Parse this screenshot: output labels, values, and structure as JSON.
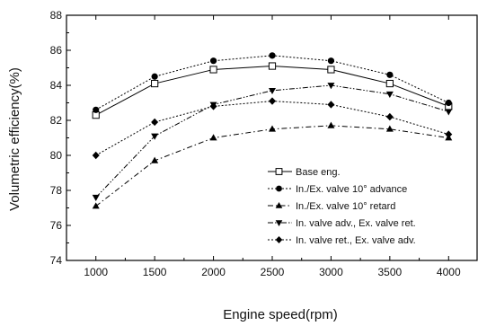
{
  "chart_data": {
    "type": "line",
    "title": "",
    "xlabel": "Engine speed(rpm)",
    "ylabel": "Volumetric efficiency(%)",
    "x": [
      1000,
      1500,
      2000,
      2500,
      3000,
      3500,
      4000
    ],
    "xlim": [
      750,
      4250
    ],
    "ylim": [
      74,
      88
    ],
    "xticks": [
      "1000",
      "1500",
      "2000",
      "2500",
      "3000",
      "3500",
      "4000"
    ],
    "yticks": [
      "74",
      "76",
      "78",
      "80",
      "82",
      "84",
      "86",
      "88"
    ],
    "grid": false,
    "legend_position": "lower-right",
    "series": [
      {
        "name": "Base eng.",
        "marker": "square-open",
        "dash": "solid",
        "values": [
          82.3,
          84.1,
          84.9,
          85.1,
          84.9,
          84.1,
          82.8
        ]
      },
      {
        "name": "In./Ex. valve 10° advance",
        "marker": "circle",
        "dash": "dotted",
        "values": [
          82.6,
          84.5,
          85.4,
          85.7,
          85.4,
          84.6,
          83.0
        ]
      },
      {
        "name": "In./Ex. valve 10° retard",
        "marker": "triangle-up",
        "dash": "dashdot",
        "values": [
          77.1,
          79.7,
          81.0,
          81.5,
          81.7,
          81.5,
          81.0
        ]
      },
      {
        "name": "In. valve adv., Ex. valve ret.",
        "marker": "triangle-down",
        "dash": "dashdotdot",
        "values": [
          77.6,
          81.1,
          82.9,
          83.7,
          84.0,
          83.5,
          82.5
        ]
      },
      {
        "name": "In. valve ret., Ex. valve adv.",
        "marker": "diamond",
        "dash": "dotted",
        "values": [
          80.0,
          81.9,
          82.8,
          83.1,
          82.9,
          82.2,
          81.2
        ]
      }
    ]
  }
}
